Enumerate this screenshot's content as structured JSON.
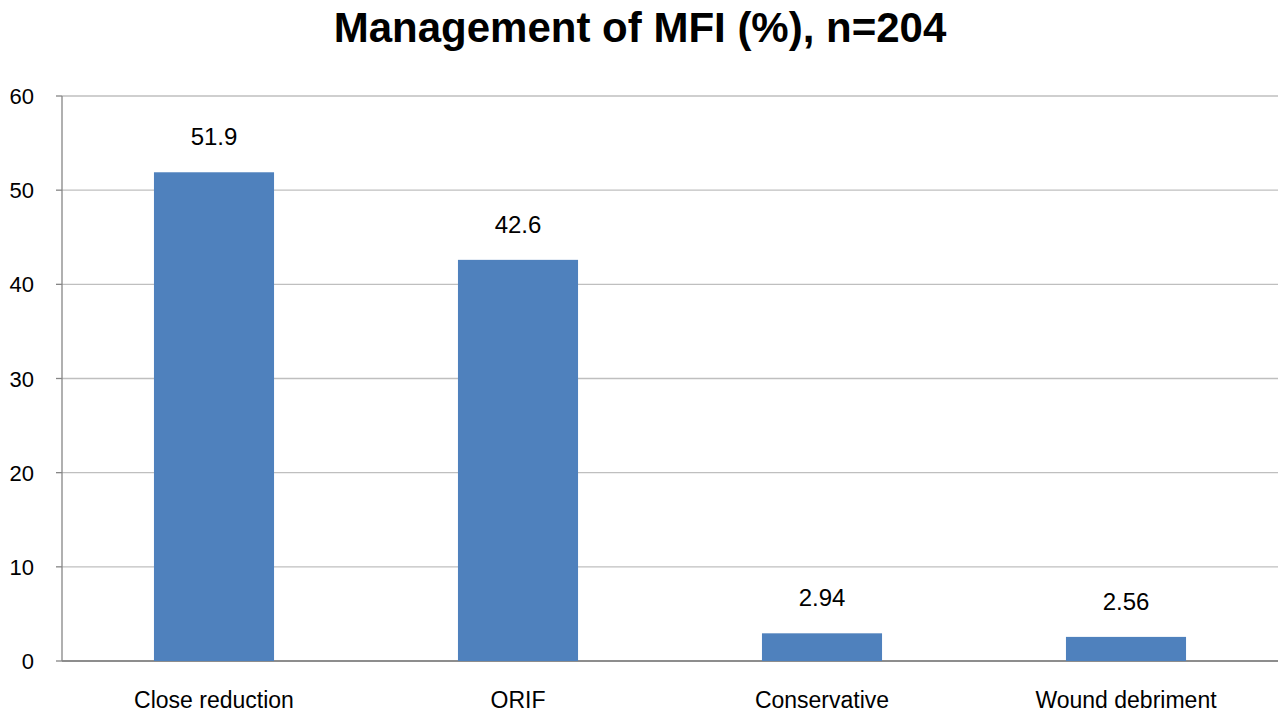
{
  "chart_data": {
    "type": "bar",
    "title": "Management of MFI (%), n=204",
    "categories": [
      "Close reduction",
      "ORIF",
      "Conservative",
      "Wound debriment"
    ],
    "values": [
      51.9,
      42.6,
      2.94,
      2.56
    ],
    "color": "#4f81bd",
    "ylim": [
      0,
      60
    ],
    "yticks": [
      0,
      10,
      20,
      30,
      40,
      50,
      60
    ],
    "grid": true,
    "data_labels": true
  }
}
